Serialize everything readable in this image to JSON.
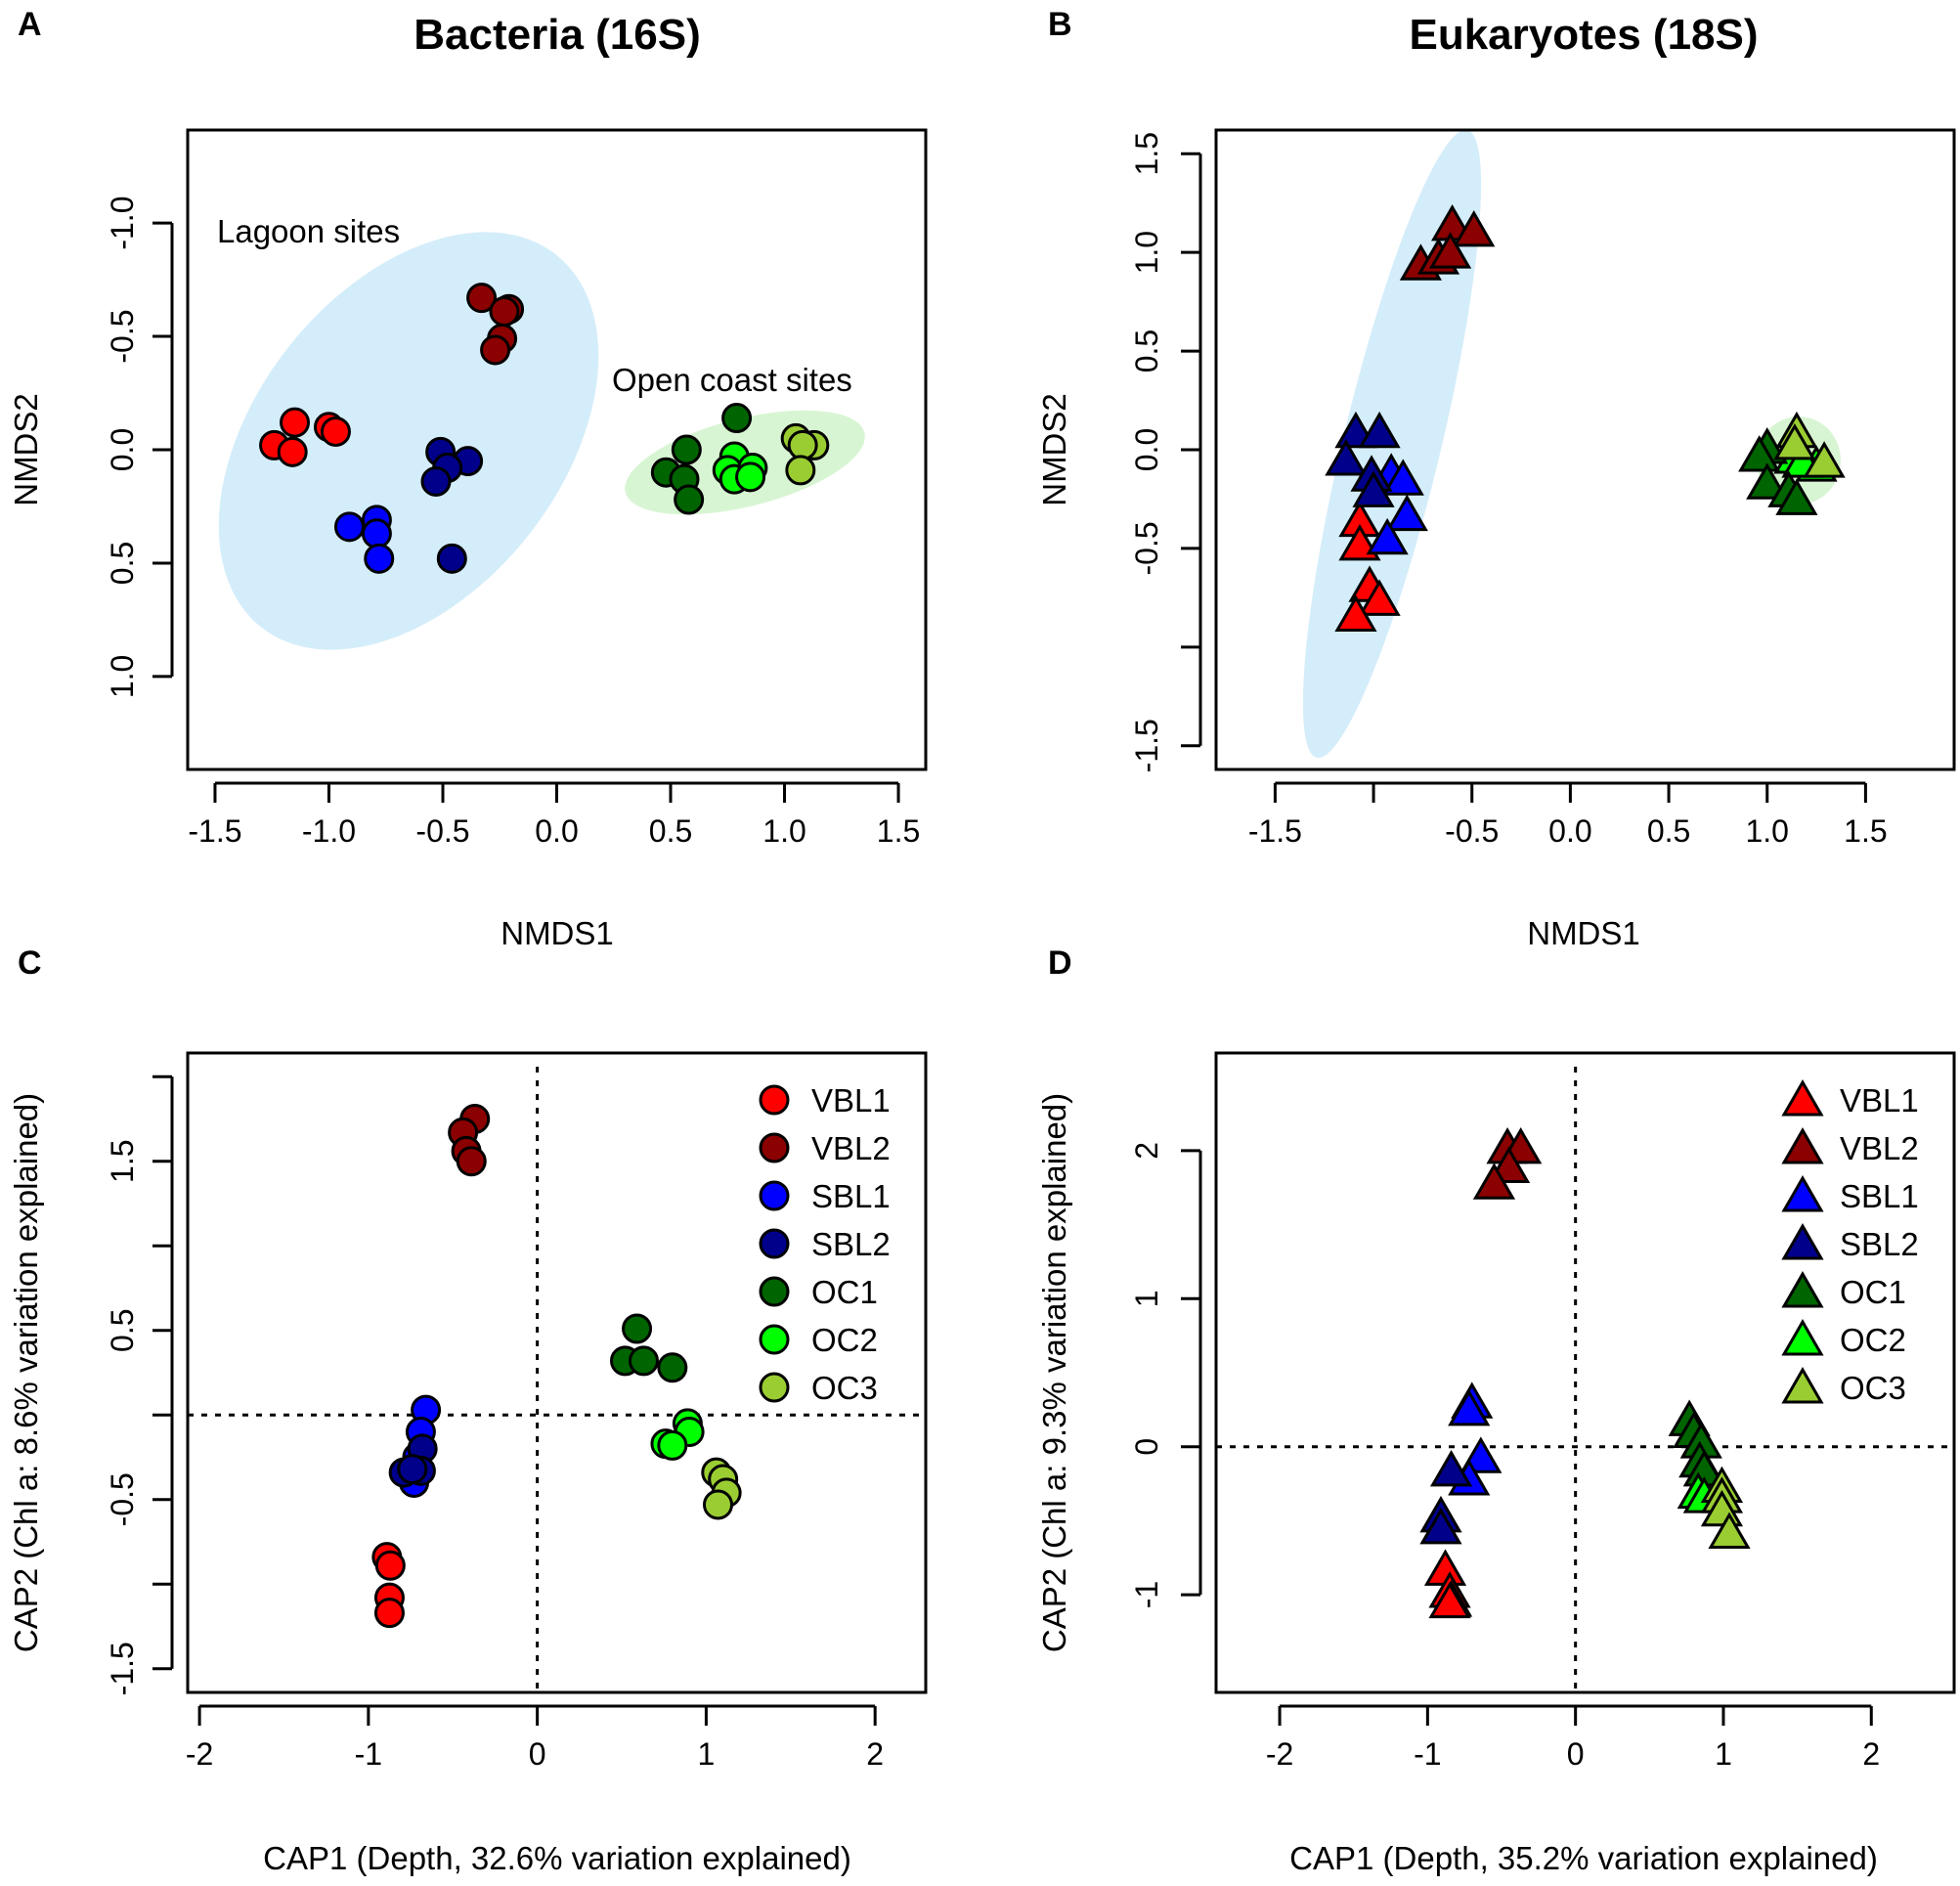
{
  "colors": {
    "VBL1": "#FF0000",
    "VBL2": "#8B0000",
    "SBL1": "#0000FF",
    "SBL2": "#00008B",
    "OC1": "#006400",
    "OC2": "#00FF00",
    "OC3": "#9ACD32",
    "lagoon_ellipse": "#D4EDFA",
    "coast_ellipse": "#D8F5D3"
  },
  "chart_data": [
    {
      "panel": "A",
      "type": "scatter",
      "marker": "circle",
      "title": "Bacteria (16S)",
      "xlabel": "NMDS1",
      "ylabel": "NMDS2",
      "xlim": [
        -1.62,
        1.62
      ],
      "ylim": [
        1.41,
        -1.41
      ],
      "y_inverted": true,
      "xticks": [
        -1.5,
        -1.0,
        -0.5,
        0.0,
        0.5,
        1.0,
        1.5
      ],
      "xtick_labels": [
        "-1.5",
        "-1.0",
        "-0.5",
        "0.0",
        "0.5",
        "1.0",
        "1.5"
      ],
      "yticks": [
        -1.0,
        -0.5,
        0.0,
        0.5,
        1.0
      ],
      "ytick_labels": [
        "-1.0",
        "-0.5",
        "0.0",
        "0.5",
        "1.0"
      ],
      "annotations": [
        "Lagoon sites",
        "Open coast sites"
      ],
      "series": [
        {
          "name": "VBL1",
          "points": [
            [
              -1.15,
              -0.12
            ],
            [
              -1.24,
              -0.02
            ],
            [
              -1.16,
              0.01
            ],
            [
              -1.0,
              -0.1
            ],
            [
              -0.97,
              -0.08
            ]
          ]
        },
        {
          "name": "VBL2",
          "points": [
            [
              -0.33,
              -0.67
            ],
            [
              -0.21,
              -0.62
            ],
            [
              -0.23,
              -0.61
            ],
            [
              -0.24,
              -0.49
            ],
            [
              -0.27,
              -0.44
            ]
          ]
        },
        {
          "name": "SBL1",
          "points": [
            [
              -0.91,
              0.34
            ],
            [
              -0.79,
              0.31
            ],
            [
              -0.79,
              0.37
            ],
            [
              -0.78,
              0.48
            ]
          ]
        },
        {
          "name": "SBL2",
          "points": [
            [
              -0.51,
              0.01
            ],
            [
              -0.39,
              0.05
            ],
            [
              -0.48,
              0.08
            ],
            [
              -0.53,
              0.14
            ],
            [
              -0.46,
              0.48
            ]
          ]
        },
        {
          "name": "OC1",
          "points": [
            [
              0.79,
              -0.14
            ],
            [
              0.57,
              0.0
            ],
            [
              0.48,
              0.1
            ],
            [
              0.56,
              0.13
            ],
            [
              0.58,
              0.22
            ]
          ]
        },
        {
          "name": "OC2",
          "points": [
            [
              0.78,
              0.03
            ],
            [
              0.75,
              0.09
            ],
            [
              0.78,
              0.13
            ],
            [
              0.86,
              0.08
            ],
            [
              0.85,
              0.12
            ]
          ]
        },
        {
          "name": "OC3",
          "points": [
            [
              1.05,
              -0.05
            ],
            [
              1.13,
              -0.02
            ],
            [
              1.08,
              -0.02
            ],
            [
              1.07,
              0.09
            ]
          ]
        }
      ]
    },
    {
      "panel": "B",
      "type": "scatter",
      "marker": "triangle",
      "title": "Eukaryotes (18S)",
      "xlabel": "NMDS1",
      "ylabel": "NMDS2",
      "xlim": [
        -1.8,
        1.95
      ],
      "ylim": [
        -1.62,
        1.62
      ],
      "y_inverted": false,
      "xticks": [
        -1.5,
        -1.0,
        -0.5,
        0.0,
        0.5,
        1.0,
        1.5
      ],
      "xtick_labels": [
        "-1.5",
        "",
        "-0.5",
        "0.0",
        "0.5",
        "1.0",
        "1.5"
      ],
      "yticks": [
        -1.5,
        -1.0,
        -0.5,
        0.0,
        0.5,
        1.0,
        1.5
      ],
      "ytick_labels": [
        "-1.5",
        "",
        "-0.5",
        "0.0",
        "0.5",
        "1.0",
        "1.5"
      ],
      "series": [
        {
          "name": "VBL1",
          "points": [
            [
              -1.07,
              -0.36
            ],
            [
              -1.07,
              -0.48
            ],
            [
              -1.02,
              -0.69
            ],
            [
              -0.97,
              -0.76
            ],
            [
              -1.09,
              -0.84
            ]
          ]
        },
        {
          "name": "VBL2",
          "points": [
            [
              -0.6,
              1.14
            ],
            [
              -0.49,
              1.11
            ],
            [
              -0.76,
              0.94
            ],
            [
              -0.67,
              0.97
            ],
            [
              -0.61,
              1.0
            ]
          ]
        },
        {
          "name": "SBL1",
          "points": [
            [
              -0.91,
              -0.12
            ],
            [
              -0.85,
              -0.15
            ],
            [
              -0.83,
              -0.33
            ],
            [
              -0.93,
              -0.45
            ]
          ]
        },
        {
          "name": "SBL2",
          "points": [
            [
              -1.09,
              0.09
            ],
            [
              -0.97,
              0.09
            ],
            [
              -1.14,
              -0.05
            ],
            [
              -1.01,
              -0.13
            ],
            [
              -1.0,
              -0.21
            ]
          ]
        },
        {
          "name": "OC2",
          "points": [
            [
              1.14,
              -0.04
            ],
            [
              1.25,
              -0.08
            ],
            [
              1.18,
              -0.06
            ]
          ]
        },
        {
          "name": "OC1",
          "points": [
            [
              1.0,
              0.01
            ],
            [
              0.96,
              -0.03
            ],
            [
              1.0,
              -0.17
            ],
            [
              1.11,
              -0.21
            ],
            [
              1.15,
              -0.25
            ]
          ]
        },
        {
          "name": "OC3",
          "points": [
            [
              1.15,
              0.09
            ],
            [
              1.14,
              0.03
            ],
            [
              1.29,
              -0.06
            ]
          ]
        }
      ]
    },
    {
      "panel": "C",
      "type": "scatter",
      "marker": "circle",
      "xlabel": "CAP1 (Depth, 32.6% variation explained)",
      "ylabel": "CAP2 (Chl a: 8.6% variation explained)",
      "xlim": [
        -2.07,
        2.3
      ],
      "ylim": [
        -1.64,
        2.14
      ],
      "y_inverted": false,
      "xticks": [
        -2,
        -1,
        0,
        1,
        2
      ],
      "xtick_labels": [
        "-2",
        "-1",
        "0",
        "1",
        "2"
      ],
      "yticks": [
        -1.5,
        -1.0,
        -0.5,
        0.0,
        0.5,
        1.0,
        1.5,
        2.0
      ],
      "ytick_labels": [
        "-1.5",
        "",
        "-0.5",
        "",
        "0.5",
        "",
        "1.5",
        ""
      ],
      "reference_lines": {
        "x": 0,
        "y": 0
      },
      "legend": "top-right",
      "series": [
        {
          "name": "VBL1",
          "points": [
            [
              -0.89,
              -0.84
            ],
            [
              -0.87,
              -0.89
            ],
            [
              -0.875,
              -1.08
            ],
            [
              -0.875,
              -1.17
            ]
          ]
        },
        {
          "name": "VBL2",
          "points": [
            [
              -0.37,
              1.75
            ],
            [
              -0.44,
              1.67
            ],
            [
              -0.42,
              1.56
            ],
            [
              -0.39,
              1.5
            ]
          ]
        },
        {
          "name": "SBL1",
          "points": [
            [
              -0.66,
              0.03
            ],
            [
              -0.69,
              -0.1
            ],
            [
              -0.71,
              -0.25
            ],
            [
              -0.73,
              -0.4
            ]
          ]
        },
        {
          "name": "SBL2",
          "points": [
            [
              -0.68,
              -0.2
            ],
            [
              -0.69,
              -0.33
            ],
            [
              -0.79,
              -0.34
            ],
            [
              -0.74,
              -0.32
            ]
          ]
        },
        {
          "name": "OC1",
          "points": [
            [
              0.59,
              0.51
            ],
            [
              0.52,
              0.32
            ],
            [
              0.63,
              0.32
            ],
            [
              0.8,
              0.28
            ]
          ]
        },
        {
          "name": "OC2",
          "points": [
            [
              0.89,
              -0.05
            ],
            [
              0.9,
              -0.1
            ],
            [
              0.76,
              -0.17
            ],
            [
              0.8,
              -0.18
            ]
          ]
        },
        {
          "name": "OC3",
          "points": [
            [
              1.06,
              -0.34
            ],
            [
              1.1,
              -0.38
            ],
            [
              1.12,
              -0.46
            ],
            [
              1.07,
              -0.53
            ]
          ]
        }
      ]
    },
    {
      "panel": "D",
      "type": "scatter",
      "marker": "triangle",
      "xlabel": "CAP1 (Depth, 35.2% variation explained)",
      "ylabel": "CAP2 (Chl a: 9.3% variation explained)",
      "xlim": [
        -2.43,
        2.56
      ],
      "ylim": [
        -1.66,
        2.66
      ],
      "y_inverted": false,
      "xticks": [
        -2,
        -1,
        0,
        1,
        2
      ],
      "xtick_labels": [
        "-2",
        "-1",
        "0",
        "1",
        "2"
      ],
      "yticks": [
        -1,
        0,
        1,
        2
      ],
      "ytick_labels": [
        "-1",
        "0",
        "1",
        "2"
      ],
      "reference_lines": {
        "x": 0,
        "y": 0
      },
      "legend": "top-right",
      "series": [
        {
          "name": "VBL1",
          "points": [
            [
              -0.88,
              -0.83
            ],
            [
              -0.85,
              -0.98
            ],
            [
              -0.84,
              -1.04
            ],
            [
              -0.85,
              -1.05
            ]
          ]
        },
        {
          "name": "VBL2",
          "points": [
            [
              -0.46,
              2.02
            ],
            [
              -0.37,
              2.02
            ],
            [
              -0.45,
              1.89
            ],
            [
              -0.55,
              1.78
            ]
          ]
        },
        {
          "name": "SBL1",
          "points": [
            [
              -0.7,
              0.3
            ],
            [
              -0.72,
              0.25
            ],
            [
              -0.64,
              -0.07
            ],
            [
              -0.72,
              -0.22
            ]
          ]
        },
        {
          "name": "SBL2",
          "points": [
            [
              -0.84,
              -0.16
            ],
            [
              -0.91,
              -0.47
            ],
            [
              -0.91,
              -0.55
            ]
          ]
        },
        {
          "name": "OC1",
          "points": [
            [
              0.77,
              0.18
            ],
            [
              0.8,
              0.1
            ],
            [
              0.85,
              0.03
            ],
            [
              0.84,
              -0.1
            ],
            [
              0.87,
              -0.16
            ]
          ]
        },
        {
          "name": "OC2",
          "points": [
            [
              0.83,
              -0.31
            ],
            [
              0.87,
              -0.34
            ]
          ]
        },
        {
          "name": "OC3",
          "points": [
            [
              0.99,
              -0.27
            ],
            [
              0.99,
              -0.34
            ],
            [
              0.99,
              -0.43
            ],
            [
              1.04,
              -0.58
            ]
          ]
        }
      ]
    }
  ],
  "legend_entries": [
    "VBL1",
    "VBL2",
    "SBL1",
    "SBL2",
    "OC1",
    "OC2",
    "OC3"
  ]
}
